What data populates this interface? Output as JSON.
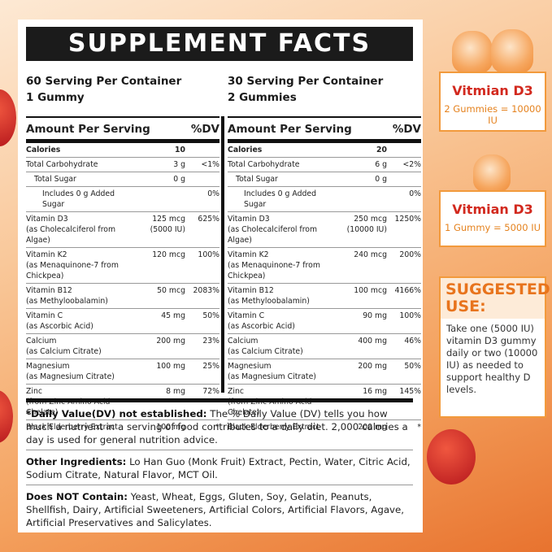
{
  "panel": {
    "title": "SUPPLEMENT FACTS",
    "columns": [
      {
        "servings": "60 Serving Per Container",
        "size": "1 Gummy",
        "amount_header": "Amount Per Serving",
        "dv_header": "%DV",
        "calories": {
          "label": "Calories",
          "value": "10"
        },
        "rows": [
          {
            "name": "Total Carbohydrate",
            "amount": "3 g",
            "dv": "<1%",
            "sub": [
              {
                "name": "Total Sugar",
                "amount": "0 g",
                "sub": [
                  {
                    "name": "Includes 0 g Added Sugar",
                    "dv": "0%"
                  }
                ]
              }
            ]
          },
          {
            "name": "Vitamin D3",
            "note": "(as Cholecalciferol from Algae)",
            "amount": "125 mcg",
            "amount_note": "(5000 IU)",
            "dv": "625%"
          },
          {
            "name": "Vitamin K2",
            "note": "(as Menaquinone-7 from Chickpea)",
            "amount": "120 mcg",
            "dv": "100%"
          },
          {
            "name": "Vitamin B12",
            "note": "(as Methyloobalamin)",
            "amount": "50 mcg",
            "dv": "2083%"
          },
          {
            "name": "Vitamin C",
            "note": "(as Ascorbic Acid)",
            "amount": "45 mg",
            "dv": "50%"
          },
          {
            "name": "Calcium",
            "note": "(as Calcium Citrate)",
            "amount": "200 mg",
            "dv": "23%"
          },
          {
            "name": "Magnesium",
            "note": "(as Magnesium Citrate)",
            "amount": "100 mg",
            "dv": "25%"
          },
          {
            "name": "Zinc",
            "note": "(from Zinc Amino Acid Chelate)",
            "amount": "8 mg",
            "dv": "72%"
          },
          {
            "name": "Black Elderberry Extract",
            "amount": "100 mg",
            "dv": "*"
          }
        ]
      },
      {
        "servings": "30 Serving Per Container",
        "size": "2 Gummies",
        "amount_header": "Amount Per Serving",
        "dv_header": "%DV",
        "calories": {
          "label": "Calories",
          "value": "20"
        },
        "rows": [
          {
            "name": "Total Carbohydrate",
            "amount": "6 g",
            "dv": "<2%",
            "sub": [
              {
                "name": "Total Sugar",
                "amount": "0 g",
                "sub": [
                  {
                    "name": "Includes 0 g Added Sugar",
                    "dv": "0%"
                  }
                ]
              }
            ]
          },
          {
            "name": "Vitamin D3",
            "note": "(as Cholecalciferol from Algae)",
            "amount": "250 mcg",
            "amount_note": "(10000 IU)",
            "dv": "1250%"
          },
          {
            "name": "Vitamin K2",
            "note": "(as Menaquinone-7 from Chickpea)",
            "amount": "240 mcg",
            "dv": "200%"
          },
          {
            "name": "Vitamin B12",
            "note": "(as Methyloobalamin)",
            "amount": "100 mcg",
            "dv": "4166%"
          },
          {
            "name": "Vitamin C",
            "note": "(as Ascorbic Acid)",
            "amount": "90 mg",
            "dv": "100%"
          },
          {
            "name": "Calcium",
            "note": "(as Calcium Citrate)",
            "amount": "400 mg",
            "dv": "46%"
          },
          {
            "name": "Magnesium",
            "note": "(as Magnesium Citrate)",
            "amount": "200 mg",
            "dv": "50%"
          },
          {
            "name": "Zinc",
            "note": "(from Zinc Amino Acid Chelate)",
            "amount": "16 mg",
            "dv": "145%"
          },
          {
            "name": "Black Elderberry Extract",
            "amount": "200 mg",
            "dv": "*"
          }
        ]
      }
    ],
    "footnotes": [
      {
        "lead": "*Daily Value(DV) not established:",
        "text": "The % Daily Value (DV) tells you how much a nutrient in a serving of food contributes to a daily diet. 2,000 calories a day is used for general nutrition advice."
      },
      {
        "lead": "Other Ingredients:",
        "text": "Lo Han Guo (Monk Fruit) Extract, Pectin, Water, Citric Acid, Sodium Citrate, Natural Flavor, MCT Oil."
      },
      {
        "lead": "Does NOT Contain:",
        "text": "Yeast, Wheat, Eggs, Gluten, Soy, Gelatin, Peanuts, Shellfish, Dairy, Artificial Sweeteners, Artificial Colors, Artificial Flavors, Agave, Artificial Preservatives and Salicylates."
      }
    ]
  },
  "cards": [
    {
      "name": "Vitmian D3",
      "dose": "2 Gummies = 10000 IU"
    },
    {
      "name": "Vitmian D3",
      "dose": "1 Gummy = 5000 IU"
    }
  ],
  "usage": {
    "title": "SUGGESTED USE:",
    "text": "Take one (5000 IU) vitamin D3 gummy daily or two (10000 IU) as needed to support healthy D levels."
  }
}
